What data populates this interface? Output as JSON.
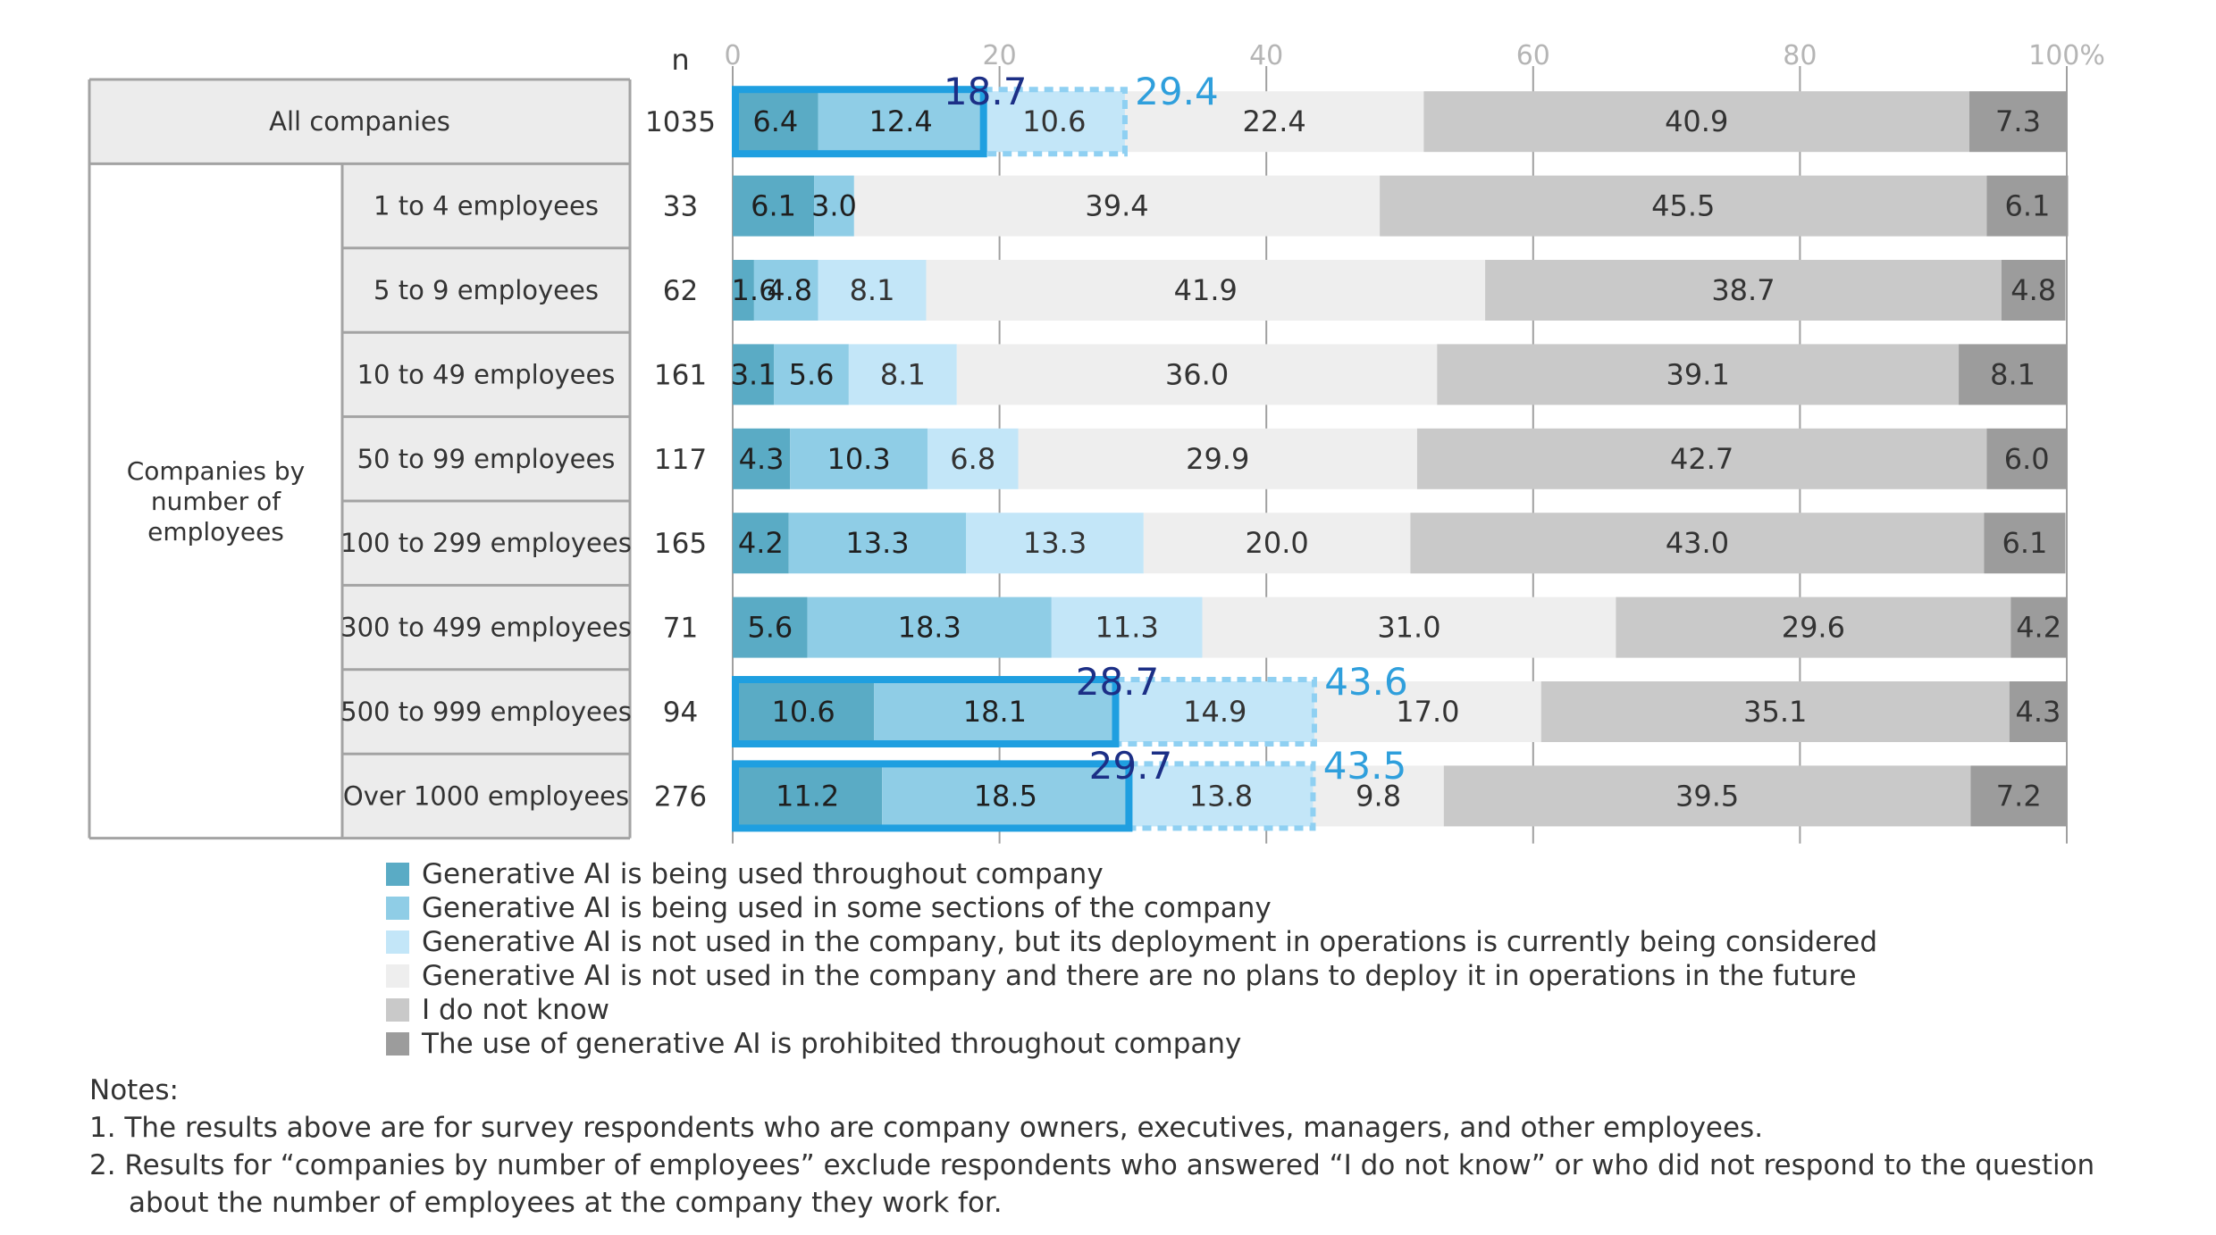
{
  "chart_data": {
    "type": "stacked-horizontal-bar",
    "n_header": "n",
    "x_ticks": [
      "0",
      "20",
      "40",
      "60",
      "80",
      "100%"
    ],
    "xlim": [
      0,
      100
    ],
    "group_label": "Companies by number of employees",
    "series": [
      {
        "name": "Generative AI is being used throughout company",
        "color": "#5aabc5"
      },
      {
        "name": "Generative AI is being used in some sections of the company",
        "color": "#8fcde6"
      },
      {
        "name": "Generative AI is not used in the company, but its deployment in operations is currently being considered",
        "color": "#c3e6f8"
      },
      {
        "name": "Generative AI is not used in the company and there are no plans to deploy it in operations in the future",
        "color": "#eeeeee"
      },
      {
        "name": "I do not know",
        "color": "#c9c9c9"
      },
      {
        "name": "The use of generative AI is prohibited throughout company",
        "color": "#9c9c9c"
      }
    ],
    "rows": [
      {
        "label": "All companies",
        "n": "1035",
        "values": [
          6.4,
          12.4,
          10.6,
          22.4,
          40.9,
          7.3
        ],
        "labels": [
          "6.4",
          "12.4",
          "10.6",
          "22.4",
          "40.9",
          "7.3"
        ],
        "highlight": {
          "used": "18.7",
          "total": "29.4"
        }
      },
      {
        "label": "1 to 4 employees",
        "n": "33",
        "values": [
          6.1,
          3.0,
          0,
          39.4,
          45.5,
          6.1
        ],
        "labels": [
          "6.1",
          "3.0",
          "",
          "39.4",
          "45.5",
          "6.1"
        ]
      },
      {
        "label": "5 to 9 employees",
        "n": "62",
        "values": [
          1.6,
          4.8,
          8.1,
          41.9,
          38.7,
          4.8
        ],
        "labels": [
          "1.6",
          "4.8",
          "8.1",
          "41.9",
          "38.7",
          "4.8"
        ]
      },
      {
        "label": "10 to 49 employees",
        "n": "161",
        "values": [
          3.1,
          5.6,
          8.1,
          36.0,
          39.1,
          8.1
        ],
        "labels": [
          "3.1",
          "5.6",
          "8.1",
          "36.0",
          "39.1",
          "8.1"
        ]
      },
      {
        "label": "50 to 99 employees",
        "n": "117",
        "values": [
          4.3,
          10.3,
          6.8,
          29.9,
          42.7,
          6.0
        ],
        "labels": [
          "4.3",
          "10.3",
          "6.8",
          "29.9",
          "42.7",
          "6.0"
        ]
      },
      {
        "label": "100 to 299 employees",
        "n": "165",
        "values": [
          4.2,
          13.3,
          13.3,
          20.0,
          43.0,
          6.1
        ],
        "labels": [
          "4.2",
          "13.3",
          "13.3",
          "20.0",
          "43.0",
          "6.1"
        ]
      },
      {
        "label": "300 to 499 employees",
        "n": "71",
        "values": [
          5.6,
          18.3,
          11.3,
          31.0,
          29.6,
          4.2
        ],
        "labels": [
          "5.6",
          "18.3",
          "11.3",
          "31.0",
          "29.6",
          "4.2"
        ]
      },
      {
        "label": "500 to 999 employees",
        "n": "94",
        "values": [
          10.6,
          18.1,
          14.9,
          17.0,
          35.1,
          4.3
        ],
        "labels": [
          "10.6",
          "18.1",
          "14.9",
          "17.0",
          "35.1",
          "4.3"
        ],
        "highlight": {
          "used": "28.7",
          "total": "43.6"
        }
      },
      {
        "label": "Over 1000 employees",
        "n": "276",
        "values": [
          11.2,
          18.5,
          13.8,
          9.8,
          39.5,
          7.2
        ],
        "labels": [
          "11.2",
          "18.5",
          "13.8",
          "9.8",
          "39.5",
          "7.2"
        ],
        "highlight": {
          "used": "29.7",
          "total": "43.5"
        }
      }
    ]
  },
  "colors": {
    "highlight_used": "#1f9fe0",
    "highlight_total": "#8fd0f2",
    "label_used": "#1c2f86",
    "label_total": "#2f9fdc"
  },
  "notes": {
    "heading": "Notes:",
    "note1": "1. The results above are for survey respondents who are company owners, executives, managers, and other employees.",
    "note2_line1": "2. Results for “companies by number of employees” exclude respondents who answered “I do not know” or who did not respond to the question",
    "note2_line2": "about the number of employees at the company they work for."
  }
}
